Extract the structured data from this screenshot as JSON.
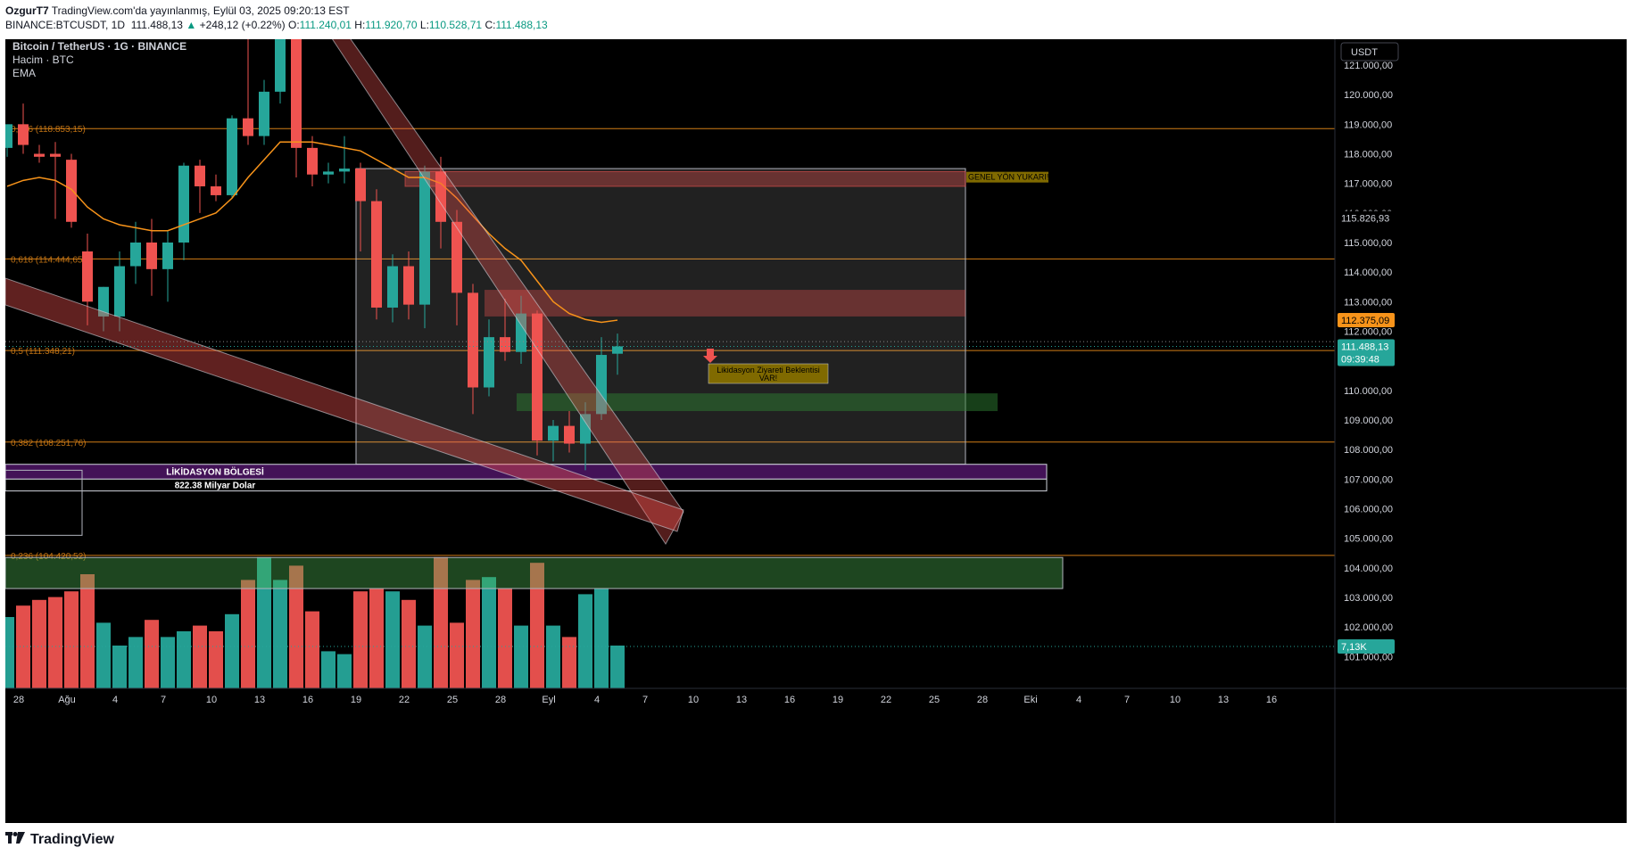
{
  "header": {
    "publisher": "OzgurT7",
    "published_text": "TradingView.com'da yayınlanmış, Eylül 03, 2025 09:20:13 EST",
    "symbol": "BINANCE:BTCUSDT, 1D",
    "last": "111.488,13",
    "change_arrow": "▲",
    "change": "+248,12 (+0.22%)",
    "o_label": "O:",
    "o": "111.240,01",
    "h_label": "H:",
    "h": "111.920,70",
    "l_label": "L:",
    "l": "110.528,71",
    "c_label": "C:",
    "c": "111.488,13"
  },
  "legend": {
    "title": "Bitcoin / TetherUS · 1G · BINANCE",
    "volume": "Hacim · BTC",
    "ema": "EMA"
  },
  "axis": {
    "currency": "USDT",
    "price_ticks": [
      "121.000,00",
      "120.000,00",
      "119.000,00",
      "118.000,00",
      "117.000,00",
      "116.000,00",
      "115.000,00",
      "114.000,00",
      "113.000,00",
      "112.000,00",
      "111.000,00",
      "110.000,00",
      "109.000,00",
      "108.000,00",
      "107.000,00",
      "106.000,00",
      "105.000,00",
      "104.000,00",
      "103.000,00",
      "102.000,00",
      "101.000,00"
    ],
    "price_tick_values": [
      121000,
      120000,
      119000,
      118000,
      117000,
      116000,
      115000,
      114000,
      113000,
      112000,
      111000,
      110000,
      109000,
      108000,
      107000,
      106000,
      105000,
      104000,
      103000,
      102000,
      101000
    ],
    "time_ticks": [
      "28",
      "Ağu",
      "4",
      "7",
      "10",
      "13",
      "16",
      "19",
      "22",
      "25",
      "28",
      "Eyl",
      "4",
      "7",
      "10",
      "13",
      "16",
      "19",
      "22",
      "25",
      "28",
      "Eki",
      "4",
      "7",
      "10",
      "13",
      "16"
    ],
    "tags": {
      "level_price": "115.826,93",
      "ema_price": "112.375,09",
      "last_price": "111.488,13",
      "countdown": "09:39:48",
      "volume": "7,13K"
    }
  },
  "fib": [
    {
      "label": "0,786 (118.853,15)",
      "value": 118853.15
    },
    {
      "label": "0,618 (114.444,65)",
      "value": 114444.65
    },
    {
      "label": "0,5 (111.348,21)",
      "value": 111348.21
    },
    {
      "label": "0,382 (108.251,76)",
      "value": 108251.76
    },
    {
      "label": "0,236 (104.420,52)",
      "value": 104420.52
    }
  ],
  "annotations": {
    "trend_up": "GENEL YÖN YUKARI!",
    "liq_expect_1": "Likidasyon Ziyareti Beklentisi",
    "liq_expect_2": "VAR!",
    "liq_zone": "LİKİDASYON BÖLGESİ",
    "liq_amount": "822.38 Milyar Dolar"
  },
  "footer": {
    "brand": "TradingView"
  },
  "colors": {
    "up": "#26a69a",
    "down": "#ef5350",
    "ema": "#f7931a",
    "fib": "#f7931a",
    "bg": "#000000"
  },
  "chart_data": {
    "type": "candlestick",
    "title": "Bitcoin / TetherUS · 1G · BINANCE",
    "ylim": [
      100000,
      122000
    ],
    "volume_unit": "K",
    "candles": [
      {
        "o": 118200,
        "h": 118900,
        "l": 117900,
        "c": 119000
      },
      {
        "o": 119000,
        "h": 119700,
        "l": 118000,
        "c": 118300
      },
      {
        "o": 118000,
        "h": 118300,
        "l": 117700,
        "c": 117900
      },
      {
        "o": 118000,
        "h": 118400,
        "l": 115800,
        "c": 117900
      },
      {
        "o": 117800,
        "h": 118000,
        "l": 115500,
        "c": 115700
      },
      {
        "o": 114700,
        "h": 115300,
        "l": 112200,
        "c": 113000
      },
      {
        "o": 112500,
        "h": 113500,
        "l": 112000,
        "c": 113500
      },
      {
        "o": 112500,
        "h": 114700,
        "l": 112000,
        "c": 114200
      },
      {
        "o": 114200,
        "h": 115700,
        "l": 113600,
        "c": 115000
      },
      {
        "o": 115000,
        "h": 115800,
        "l": 113200,
        "c": 114100
      },
      {
        "o": 114100,
        "h": 115400,
        "l": 113000,
        "c": 115000
      },
      {
        "o": 115000,
        "h": 117700,
        "l": 114400,
        "c": 117600
      },
      {
        "o": 117600,
        "h": 117800,
        "l": 116000,
        "c": 116900
      },
      {
        "o": 116900,
        "h": 117300,
        "l": 116400,
        "c": 116600
      },
      {
        "o": 116600,
        "h": 119300,
        "l": 116500,
        "c": 119200
      },
      {
        "o": 119200,
        "h": 122300,
        "l": 118300,
        "c": 118600
      },
      {
        "o": 118600,
        "h": 120500,
        "l": 118300,
        "c": 120100
      },
      {
        "o": 120100,
        "h": 124400,
        "l": 119700,
        "c": 123400
      },
      {
        "o": 123400,
        "h": 123600,
        "l": 117200,
        "c": 118200
      },
      {
        "o": 118200,
        "h": 118600,
        "l": 116900,
        "c": 117300
      },
      {
        "o": 117300,
        "h": 117700,
        "l": 117000,
        "c": 117400
      },
      {
        "o": 117400,
        "h": 118600,
        "l": 117000,
        "c": 117500
      },
      {
        "o": 117500,
        "h": 117700,
        "l": 114700,
        "c": 116400
      },
      {
        "o": 116400,
        "h": 116800,
        "l": 112400,
        "c": 112800
      },
      {
        "o": 112800,
        "h": 114600,
        "l": 112300,
        "c": 114200
      },
      {
        "o": 114200,
        "h": 114700,
        "l": 112400,
        "c": 112900
      },
      {
        "o": 112900,
        "h": 117600,
        "l": 112100,
        "c": 117400
      },
      {
        "o": 117400,
        "h": 117900,
        "l": 114800,
        "c": 115700
      },
      {
        "o": 115700,
        "h": 116100,
        "l": 112200,
        "c": 113300
      },
      {
        "o": 113300,
        "h": 113600,
        "l": 109200,
        "c": 110100
      },
      {
        "o": 110100,
        "h": 112400,
        "l": 109800,
        "c": 111800
      },
      {
        "o": 111800,
        "h": 113100,
        "l": 111000,
        "c": 111300
      },
      {
        "o": 111300,
        "h": 113200,
        "l": 110900,
        "c": 112600
      },
      {
        "o": 112600,
        "h": 112700,
        "l": 107800,
        "c": 108300
      },
      {
        "o": 108300,
        "h": 109000,
        "l": 107600,
        "c": 108800
      },
      {
        "o": 108800,
        "h": 109300,
        "l": 107900,
        "c": 108200
      },
      {
        "o": 108200,
        "h": 109600,
        "l": 107300,
        "c": 109200
      },
      {
        "o": 109200,
        "h": 111800,
        "l": 109000,
        "c": 111200
      },
      {
        "o": 111240.01,
        "h": 111920.7,
        "l": 110528.71,
        "c": 111488.13
      }
    ],
    "volumes": [
      25,
      29,
      31,
      32,
      34,
      40,
      23,
      15,
      18,
      24,
      18,
      20,
      22,
      20,
      26,
      38,
      46,
      38,
      43,
      27,
      13,
      12,
      34,
      35,
      34,
      31,
      22,
      46,
      23,
      38,
      39,
      35,
      22,
      44,
      22,
      18,
      33,
      35,
      15
    ],
    "ema": [
      116900,
      117100,
      117200,
      117100,
      116800,
      116200,
      115800,
      115600,
      115500,
      115400,
      115400,
      115600,
      115800,
      116000,
      116500,
      117200,
      117800,
      118400,
      118400,
      118400,
      118300,
      118200,
      118100,
      117800,
      117500,
      117200,
      117200,
      117000,
      116500,
      115900,
      115300,
      114800,
      114400,
      113700,
      113000,
      112600,
      112400,
      112300,
      112375
    ]
  }
}
